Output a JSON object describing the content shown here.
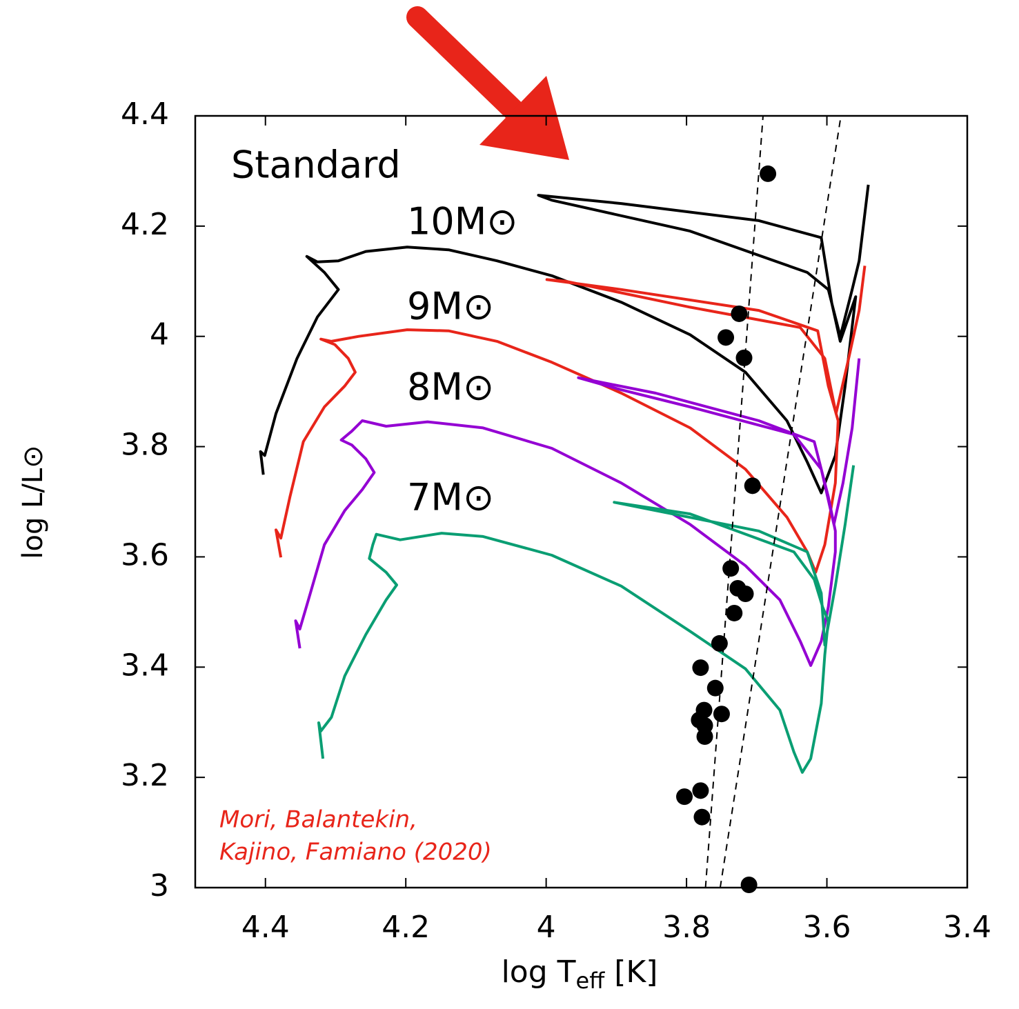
{
  "chart_data": {
    "type": "line",
    "xlabel": [
      "log T",
      "eff",
      " [K]"
    ],
    "ylabel": "log L/L⊙",
    "annotations": [
      "Standard",
      "Mori, Balantekin,",
      "Kajino, Famiano (2020)"
    ],
    "xlim": [
      4.5,
      3.4
    ],
    "ylim": [
      3,
      4.4
    ],
    "xticks": [
      4.4,
      4.2,
      4,
      3.8,
      3.6,
      3.4
    ],
    "yticks": [
      3,
      3.2,
      3.4,
      3.6,
      3.8,
      4,
      4.2,
      4.4
    ],
    "series": [
      {
        "name": "10M⊙",
        "type": "line",
        "color": "#000000",
        "x": [
          4.403,
          4.407,
          4.401,
          4.385,
          4.355,
          4.326,
          4.296,
          4.316,
          4.341,
          4.326,
          4.296,
          4.257,
          4.198,
          4.139,
          4.07,
          3.992,
          3.893,
          3.795,
          3.716,
          3.657,
          3.628,
          3.608,
          3.588,
          3.574,
          3.559,
          3.581,
          3.593,
          3.608,
          3.697,
          3.893,
          4.011,
          3.992,
          3.795,
          3.628,
          3.598,
          3.581,
          3.564,
          3.554,
          3.541
        ],
        "y": [
          3.749,
          3.791,
          3.784,
          3.86,
          3.96,
          4.035,
          4.085,
          4.116,
          4.145,
          4.135,
          4.137,
          4.154,
          4.162,
          4.157,
          4.137,
          4.11,
          4.062,
          4.003,
          3.935,
          3.847,
          3.772,
          3.716,
          3.784,
          3.91,
          4.072,
          3.991,
          4.06,
          4.179,
          4.21,
          4.241,
          4.256,
          4.247,
          4.191,
          4.116,
          4.085,
          4.0,
          4.085,
          4.137,
          4.275
        ]
      },
      {
        "name": "9M⊙",
        "type": "line",
        "color": "#e8251a",
        "x": [
          4.378,
          4.385,
          4.378,
          4.365,
          4.346,
          4.316,
          4.287,
          4.272,
          4.282,
          4.301,
          4.321,
          4.306,
          4.267,
          4.198,
          4.139,
          4.07,
          3.992,
          3.893,
          3.795,
          3.716,
          3.657,
          3.628,
          3.616,
          3.603,
          3.588,
          3.584,
          3.598,
          3.613,
          3.697,
          3.893,
          3.999,
          3.972,
          3.795,
          3.638,
          3.603,
          3.587,
          3.569,
          3.554,
          3.546
        ],
        "y": [
          3.599,
          3.649,
          3.634,
          3.709,
          3.809,
          3.872,
          3.91,
          3.935,
          3.96,
          3.985,
          3.995,
          3.991,
          4.0,
          4.012,
          4.01,
          3.991,
          3.953,
          3.897,
          3.834,
          3.759,
          3.672,
          3.609,
          3.572,
          3.622,
          3.734,
          3.847,
          3.91,
          4.01,
          4.047,
          4.085,
          4.103,
          4.1,
          4.053,
          4.016,
          3.96,
          3.86,
          3.96,
          4.047,
          4.128
        ]
      },
      {
        "name": "8M⊙",
        "type": "line",
        "color": "#9400d3",
        "x": [
          4.351,
          4.357,
          4.351,
          4.336,
          4.316,
          4.287,
          4.262,
          4.245,
          4.257,
          4.277,
          4.292,
          4.277,
          4.262,
          4.228,
          4.169,
          4.09,
          3.992,
          3.893,
          3.795,
          3.716,
          3.667,
          3.638,
          3.623,
          3.608,
          3.598,
          3.588,
          3.588,
          3.598,
          3.618,
          3.697,
          3.844,
          3.954,
          3.893,
          3.795,
          3.647,
          3.608,
          3.59,
          3.577,
          3.564,
          3.554
        ],
        "y": [
          3.434,
          3.484,
          3.469,
          3.534,
          3.622,
          3.684,
          3.722,
          3.753,
          3.778,
          3.803,
          3.812,
          3.828,
          3.847,
          3.837,
          3.845,
          3.834,
          3.797,
          3.734,
          3.659,
          3.584,
          3.522,
          3.447,
          3.403,
          3.447,
          3.509,
          3.609,
          3.647,
          3.709,
          3.809,
          3.847,
          3.897,
          3.925,
          3.903,
          3.872,
          3.822,
          3.759,
          3.659,
          3.734,
          3.834,
          3.96
        ]
      },
      {
        "name": "7M⊙",
        "type": "line",
        "color": "#0a9e73",
        "x": [
          4.318,
          4.324,
          4.321,
          4.306,
          4.287,
          4.257,
          4.228,
          4.213,
          4.228,
          4.252,
          4.247,
          4.242,
          4.208,
          4.149,
          4.09,
          3.992,
          3.893,
          3.795,
          3.716,
          3.667,
          3.647,
          3.635,
          3.623,
          3.608,
          3.603,
          3.598,
          3.606,
          3.618,
          3.647,
          3.795,
          3.903,
          3.844,
          3.697,
          3.628,
          3.608,
          3.603,
          3.588,
          3.574,
          3.562
        ],
        "y": [
          3.234,
          3.299,
          3.284,
          3.309,
          3.384,
          3.459,
          3.522,
          3.549,
          3.572,
          3.597,
          3.622,
          3.641,
          3.631,
          3.643,
          3.637,
          3.603,
          3.547,
          3.465,
          3.397,
          3.322,
          3.246,
          3.209,
          3.234,
          3.334,
          3.422,
          3.484,
          3.509,
          3.559,
          3.609,
          3.678,
          3.699,
          3.684,
          3.647,
          3.609,
          3.534,
          3.44,
          3.547,
          3.659,
          3.766
        ]
      },
      {
        "type": "scatter",
        "color": "#000000",
        "x": [
          3.684,
          3.725,
          3.744,
          3.718,
          3.706,
          3.737,
          3.727,
          3.716,
          3.732,
          3.753,
          3.78,
          3.759,
          3.775,
          3.75,
          3.782,
          3.774,
          3.774,
          3.803,
          3.78,
          3.778,
          3.711
        ],
        "y": [
          4.295,
          4.041,
          3.998,
          3.961,
          3.729,
          3.579,
          3.543,
          3.533,
          3.498,
          3.443,
          3.399,
          3.362,
          3.322,
          3.315,
          3.304,
          3.294,
          3.274,
          3.165,
          3.176,
          3.128,
          3.005
        ]
      },
      {
        "type": "dashed",
        "color": "#000000",
        "x": [
          3.773,
          3.691
        ],
        "y": [
          3,
          4.4
        ]
      },
      {
        "type": "dashed",
        "color": "#000000",
        "x": [
          3.752,
          3.58
        ],
        "y": [
          3,
          4.4
        ]
      }
    ]
  }
}
